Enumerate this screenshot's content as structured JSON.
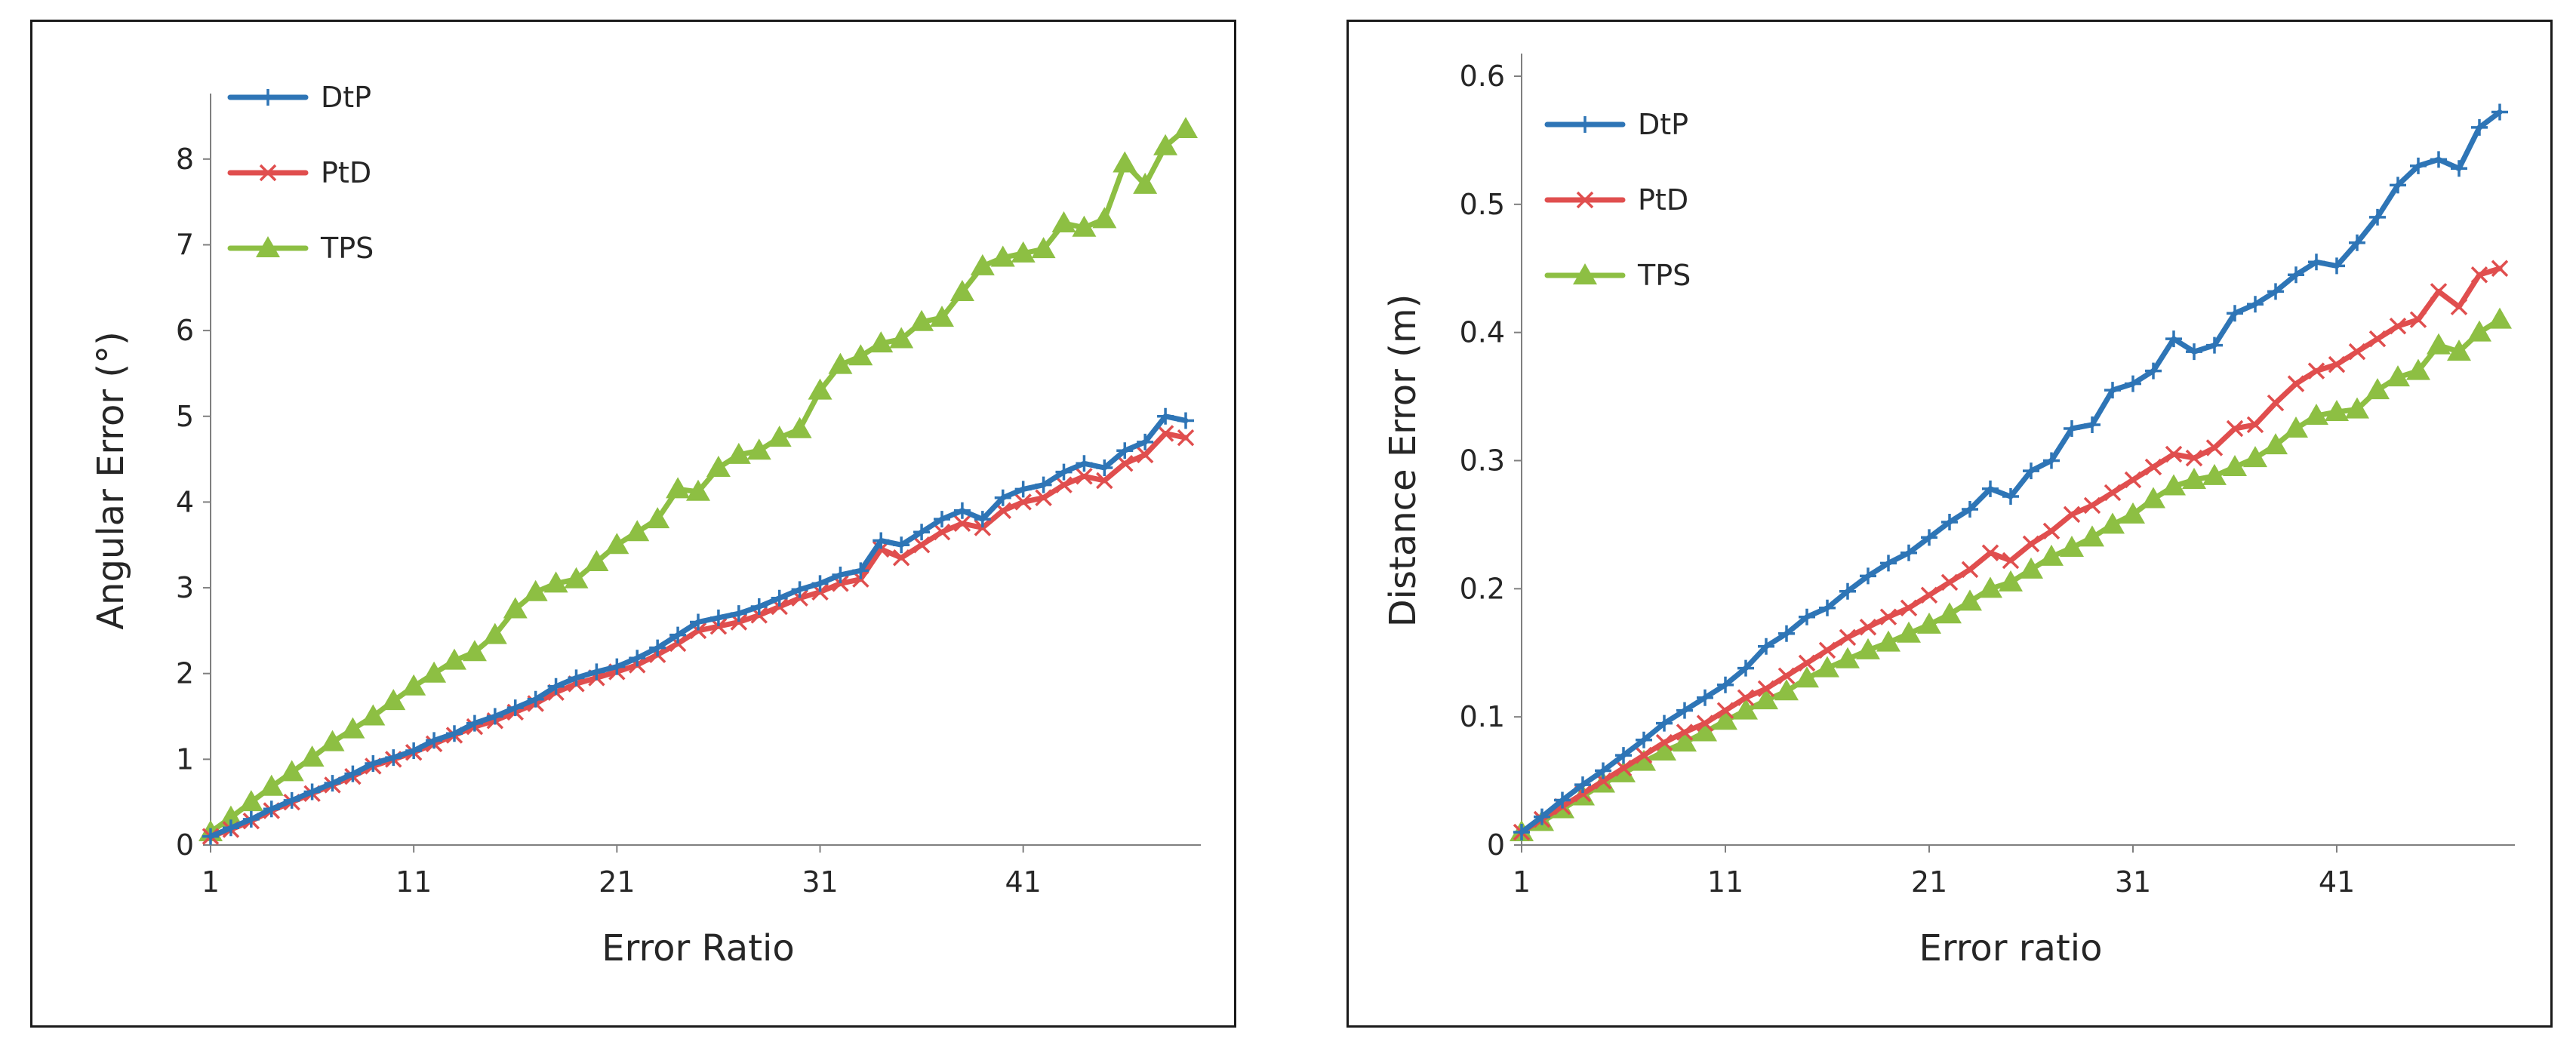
{
  "colors": {
    "DtP": "#2E75B6",
    "PtD": "#E04E4E",
    "TPS": "#8DBF43"
  },
  "chart_data": [
    {
      "type": "line",
      "xlabel": "Error Ratio",
      "ylabel": "Angular Error (°)",
      "xlim": [
        1,
        49
      ],
      "ylim": [
        0,
        8.5
      ],
      "xticks": [
        1,
        11,
        21,
        31,
        41
      ],
      "yticks": [
        0,
        1,
        2,
        3,
        4,
        5,
        6,
        7,
        8
      ],
      "tick_labels_x": [
        "1",
        "11",
        "21",
        "31",
        "41"
      ],
      "tick_labels_y": [
        "0",
        "1",
        "2",
        "3",
        "4",
        "5",
        "6",
        "7",
        "8"
      ],
      "legend_position": "top-left",
      "x": [
        1,
        2,
        3,
        4,
        5,
        6,
        7,
        8,
        9,
        10,
        11,
        12,
        13,
        14,
        15,
        16,
        17,
        18,
        19,
        20,
        21,
        22,
        23,
        24,
        25,
        26,
        27,
        28,
        29,
        30,
        31,
        32,
        33,
        34,
        35,
        36,
        37,
        38,
        39,
        40,
        41,
        42,
        43,
        44,
        45,
        46,
        47,
        48,
        49
      ],
      "series": [
        {
          "name": "DtP",
          "marker": "plus",
          "values": [
            0.1,
            0.2,
            0.3,
            0.42,
            0.52,
            0.62,
            0.72,
            0.83,
            0.95,
            1.02,
            1.1,
            1.22,
            1.3,
            1.42,
            1.5,
            1.6,
            1.7,
            1.85,
            1.95,
            2.02,
            2.08,
            2.18,
            2.3,
            2.45,
            2.6,
            2.65,
            2.7,
            2.78,
            2.88,
            2.98,
            3.05,
            3.15,
            3.2,
            3.55,
            3.5,
            3.65,
            3.8,
            3.9,
            3.8,
            4.05,
            4.15,
            4.2,
            4.35,
            4.45,
            4.4,
            4.6,
            4.7,
            5.0,
            4.95
          ]
        },
        {
          "name": "PtD",
          "marker": "x",
          "values": [
            0.1,
            0.18,
            0.28,
            0.4,
            0.5,
            0.6,
            0.7,
            0.8,
            0.92,
            1.0,
            1.08,
            1.18,
            1.28,
            1.38,
            1.45,
            1.55,
            1.65,
            1.78,
            1.88,
            1.95,
            2.02,
            2.1,
            2.22,
            2.35,
            2.5,
            2.55,
            2.6,
            2.68,
            2.78,
            2.88,
            2.95,
            3.05,
            3.1,
            3.45,
            3.35,
            3.5,
            3.65,
            3.75,
            3.7,
            3.9,
            4.0,
            4.05,
            4.2,
            4.3,
            4.25,
            4.45,
            4.55,
            4.8,
            4.75
          ]
        },
        {
          "name": "TPS",
          "marker": "triangle",
          "values": [
            0.15,
            0.32,
            0.5,
            0.68,
            0.85,
            1.02,
            1.2,
            1.35,
            1.5,
            1.68,
            1.85,
            2.0,
            2.15,
            2.25,
            2.45,
            2.75,
            2.95,
            3.05,
            3.1,
            3.3,
            3.5,
            3.65,
            3.8,
            4.15,
            4.12,
            4.4,
            4.55,
            4.6,
            4.75,
            4.85,
            5.3,
            5.6,
            5.7,
            5.85,
            5.9,
            6.1,
            6.15,
            6.45,
            6.75,
            6.85,
            6.9,
            6.95,
            7.25,
            7.2,
            7.3,
            7.95,
            7.7,
            8.15,
            8.35
          ]
        }
      ]
    },
    {
      "type": "line",
      "xlabel": "Error ratio",
      "ylabel": "Distance Error (m)",
      "xlim": [
        1,
        49
      ],
      "ylim": [
        0,
        0.6
      ],
      "xticks": [
        1,
        11,
        21,
        31,
        41
      ],
      "yticks": [
        0,
        0.1,
        0.2,
        0.3,
        0.4,
        0.5,
        0.6
      ],
      "tick_labels_x": [
        "1",
        "11",
        "21",
        "31",
        "41"
      ],
      "tick_labels_y": [
        "0",
        "0.1",
        "0.2",
        "0.3",
        "0.4",
        "0.5",
        "0.6"
      ],
      "legend_position": "top-left",
      "x": [
        1,
        2,
        3,
        4,
        5,
        6,
        7,
        8,
        9,
        10,
        11,
        12,
        13,
        14,
        15,
        16,
        17,
        18,
        19,
        20,
        21,
        22,
        23,
        24,
        25,
        26,
        27,
        28,
        29,
        30,
        31,
        32,
        33,
        34,
        35,
        36,
        37,
        38,
        39,
        40,
        41,
        42,
        43,
        44,
        45,
        46,
        47,
        48,
        49
      ],
      "series": [
        {
          "name": "DtP",
          "marker": "plus",
          "values": [
            0.01,
            0.022,
            0.035,
            0.047,
            0.058,
            0.07,
            0.082,
            0.095,
            0.105,
            0.115,
            0.125,
            0.138,
            0.155,
            0.165,
            0.178,
            0.185,
            0.198,
            0.21,
            0.22,
            0.228,
            0.24,
            0.252,
            0.262,
            0.278,
            0.272,
            0.292,
            0.3,
            0.325,
            0.328,
            0.355,
            0.36,
            0.37,
            0.395,
            0.385,
            0.39,
            0.415,
            0.422,
            0.432,
            0.445,
            0.455,
            0.452,
            0.47,
            0.49,
            0.515,
            0.53,
            0.535,
            0.528,
            0.56,
            0.572
          ]
        },
        {
          "name": "PtD",
          "marker": "x",
          "values": [
            0.01,
            0.02,
            0.03,
            0.04,
            0.05,
            0.06,
            0.07,
            0.08,
            0.088,
            0.095,
            0.105,
            0.115,
            0.122,
            0.132,
            0.142,
            0.152,
            0.162,
            0.17,
            0.178,
            0.185,
            0.195,
            0.205,
            0.215,
            0.228,
            0.222,
            0.235,
            0.245,
            0.258,
            0.265,
            0.275,
            0.285,
            0.295,
            0.305,
            0.302,
            0.31,
            0.325,
            0.328,
            0.345,
            0.36,
            0.37,
            0.375,
            0.385,
            0.395,
            0.405,
            0.41,
            0.432,
            0.42,
            0.445,
            0.45
          ]
        },
        {
          "name": "TPS",
          "marker": "triangle",
          "values": [
            0.01,
            0.018,
            0.028,
            0.038,
            0.048,
            0.056,
            0.065,
            0.073,
            0.08,
            0.088,
            0.097,
            0.105,
            0.113,
            0.12,
            0.13,
            0.138,
            0.145,
            0.152,
            0.158,
            0.165,
            0.172,
            0.18,
            0.19,
            0.2,
            0.205,
            0.215,
            0.225,
            0.232,
            0.24,
            0.25,
            0.258,
            0.27,
            0.28,
            0.285,
            0.288,
            0.295,
            0.302,
            0.312,
            0.325,
            0.335,
            0.338,
            0.34,
            0.355,
            0.365,
            0.37,
            0.39,
            0.385,
            0.4,
            0.41
          ]
        }
      ]
    }
  ]
}
